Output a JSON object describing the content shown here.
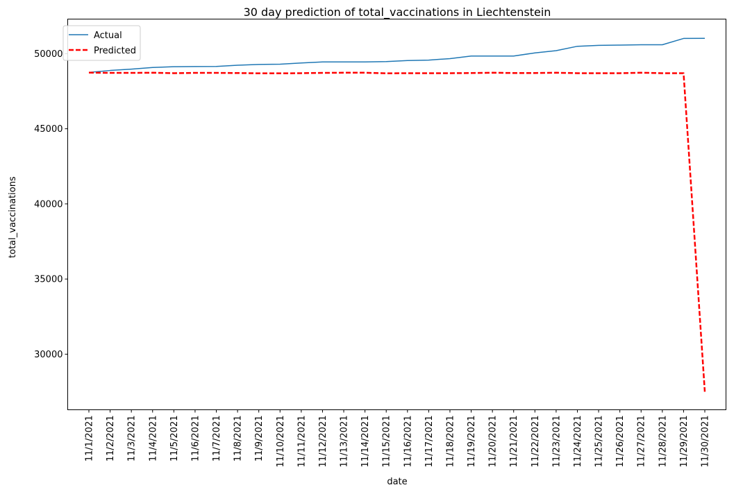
{
  "chart_data": {
    "type": "line",
    "title": "30 day prediction of total_vaccinations in Liechtenstein",
    "xlabel": "date",
    "ylabel": "total_vaccinations",
    "x": [
      "11/1/2021",
      "11/2/2021",
      "11/3/2021",
      "11/4/2021",
      "11/5/2021",
      "11/6/2021",
      "11/7/2021",
      "11/8/2021",
      "11/9/2021",
      "11/10/2021",
      "11/11/2021",
      "11/12/2021",
      "11/13/2021",
      "11/14/2021",
      "11/15/2021",
      "11/16/2021",
      "11/17/2021",
      "11/18/2021",
      "11/19/2021",
      "11/20/2021",
      "11/21/2021",
      "11/22/2021",
      "11/23/2021",
      "11/24/2021",
      "11/25/2021",
      "11/26/2021",
      "11/27/2021",
      "11/28/2021",
      "11/29/2021",
      "11/30/2021"
    ],
    "ylim": [
      26300,
      52300
    ],
    "yticks": [
      30000,
      35000,
      40000,
      45000,
      50000
    ],
    "ytick_labels": [
      "30000",
      "35000",
      "40000",
      "45000",
      "50000"
    ],
    "grid": false,
    "legend_position": "upper left",
    "series": [
      {
        "name": "Actual",
        "color": "#1f77b4",
        "style": "solid",
        "values": [
          48750,
          48880,
          48970,
          49080,
          49130,
          49140,
          49150,
          49230,
          49280,
          49300,
          49380,
          49450,
          49450,
          49450,
          49470,
          49540,
          49570,
          49670,
          49840,
          49840,
          49840,
          50050,
          50200,
          50490,
          50550,
          50570,
          50590,
          50590,
          51010,
          51020
        ]
      },
      {
        "name": "Predicted",
        "color": "#ff0000",
        "style": "dashed",
        "values": [
          48740,
          48720,
          48720,
          48730,
          48700,
          48720,
          48720,
          48710,
          48690,
          48690,
          48700,
          48720,
          48730,
          48730,
          48690,
          48700,
          48700,
          48700,
          48710,
          48730,
          48710,
          48710,
          48730,
          48700,
          48700,
          48700,
          48730,
          48700,
          48700,
          27500
        ]
      }
    ]
  }
}
